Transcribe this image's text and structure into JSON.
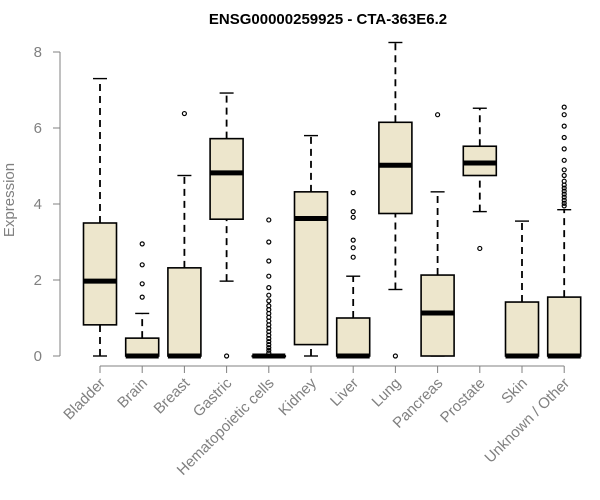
{
  "chart_data": {
    "type": "boxplot",
    "title": "ENSG00000259925 - CTA-363E6.2",
    "xlabel": "",
    "ylabel": "Expression",
    "ylim": [
      0,
      8.3
    ],
    "yticks": [
      0,
      2,
      4,
      6,
      8
    ],
    "grid": false,
    "box_color": "#ede6cc",
    "categories": [
      "Bladder",
      "Brain",
      "Breast",
      "Gastric",
      "Hematopoietic cells",
      "Kidney",
      "Liver",
      "Lung",
      "Pancreas",
      "Prostate",
      "Skin",
      "Unknown / Other"
    ],
    "boxes": [
      {
        "low": 0.0,
        "q1": 0.82,
        "median": 1.97,
        "q3": 3.5,
        "high": 7.3,
        "outliers": []
      },
      {
        "low": 0.0,
        "q1": 0.0,
        "median": 0.0,
        "q3": 0.47,
        "high": 1.12,
        "outliers": [
          1.55,
          1.9,
          2.4,
          2.95
        ]
      },
      {
        "low": 0.0,
        "q1": 0.0,
        "median": 0.0,
        "q3": 2.32,
        "high": 4.75,
        "outliers": [
          6.38
        ]
      },
      {
        "low": 1.97,
        "q1": 3.6,
        "median": 4.82,
        "q3": 5.72,
        "high": 6.92,
        "outliers": [
          0.0
        ]
      },
      {
        "low": 0.0,
        "q1": 0.0,
        "median": 0.0,
        "q3": 0.0,
        "high": 0.0,
        "outliers": [
          0.08,
          0.15,
          0.22,
          0.3,
          0.38,
          0.46,
          0.55,
          0.64,
          0.73,
          0.82,
          0.92,
          1.02,
          1.12,
          1.22,
          1.32,
          1.45,
          1.6,
          1.8,
          2.1,
          2.5,
          3.0,
          3.58
        ]
      },
      {
        "low": 0.0,
        "q1": 0.3,
        "median": 3.62,
        "q3": 4.32,
        "high": 5.8,
        "outliers": []
      },
      {
        "low": 0.0,
        "q1": 0.0,
        "median": 0.0,
        "q3": 1.0,
        "high": 2.1,
        "outliers": [
          2.6,
          2.85,
          3.05,
          3.65,
          3.8,
          4.3
        ]
      },
      {
        "low": 1.75,
        "q1": 3.75,
        "median": 5.02,
        "q3": 6.15,
        "high": 8.25,
        "outliers": [
          0.0
        ]
      },
      {
        "low": 0.0,
        "q1": 0.0,
        "median": 1.13,
        "q3": 2.13,
        "high": 4.32,
        "outliers": [
          6.35
        ]
      },
      {
        "low": 3.8,
        "q1": 4.75,
        "median": 5.08,
        "q3": 5.52,
        "high": 6.52,
        "outliers": [
          2.83
        ]
      },
      {
        "low": 0.0,
        "q1": 0.0,
        "median": 0.0,
        "q3": 1.42,
        "high": 3.55,
        "outliers": []
      },
      {
        "low": 0.0,
        "q1": 0.0,
        "median": 0.0,
        "q3": 1.55,
        "high": 3.85,
        "outliers": [
          3.95,
          4.02,
          4.1,
          4.18,
          4.26,
          4.34,
          4.42,
          4.5,
          4.6,
          4.75,
          4.9,
          5.15,
          5.45,
          5.75,
          6.05,
          6.35,
          6.55
        ]
      }
    ]
  }
}
